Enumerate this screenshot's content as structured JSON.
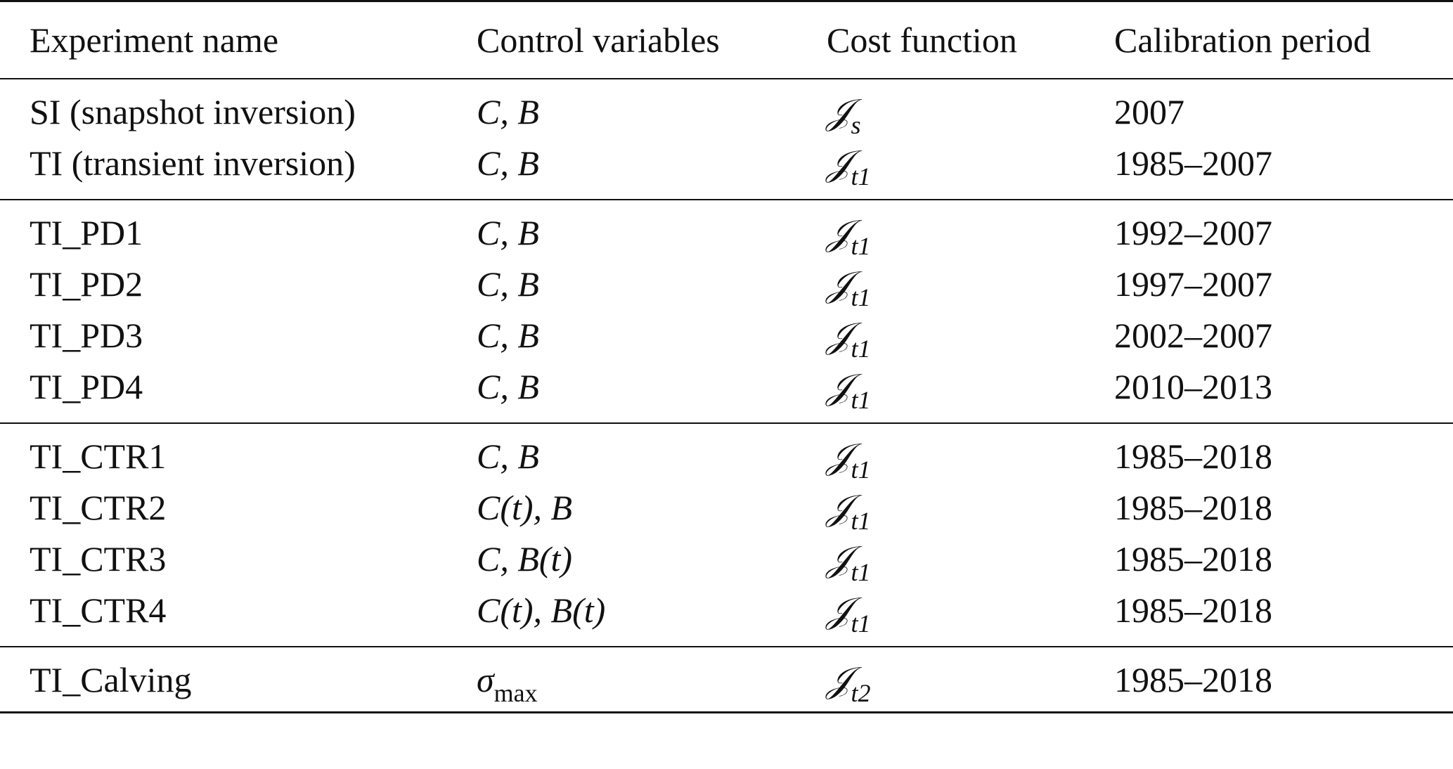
{
  "table": {
    "headers": [
      "Experiment name",
      "Control variables",
      "Cost function",
      "Calibration period"
    ],
    "groups": [
      [
        {
          "name": "SI (snapshot inversion)",
          "control": "C, B",
          "cost_main": "𝒥",
          "cost_sub": "s",
          "period": "2007"
        },
        {
          "name": "TI (transient inversion)",
          "control": "C, B",
          "cost_main": "𝒥",
          "cost_sub": "t1",
          "period": "1985–2007"
        }
      ],
      [
        {
          "name": "TI_PD1",
          "control": "C, B",
          "cost_main": "𝒥",
          "cost_sub": "t1",
          "period": "1992–2007"
        },
        {
          "name": "TI_PD2",
          "control": "C, B",
          "cost_main": "𝒥",
          "cost_sub": "t1",
          "period": "1997–2007"
        },
        {
          "name": "TI_PD3",
          "control": "C, B",
          "cost_main": "𝒥",
          "cost_sub": "t1",
          "period": "2002–2007"
        },
        {
          "name": "TI_PD4",
          "control": "C, B",
          "cost_main": "𝒥",
          "cost_sub": "t1",
          "period": "2010–2013"
        }
      ],
      [
        {
          "name": "TI_CTR1",
          "control": "C, B",
          "cost_main": "𝒥",
          "cost_sub": "t1",
          "period": "1985–2018"
        },
        {
          "name": "TI_CTR2",
          "control": "C(t), B",
          "cost_main": "𝒥",
          "cost_sub": "t1",
          "period": "1985–2018"
        },
        {
          "name": "TI_CTR3",
          "control": "C, B(t)",
          "cost_main": "𝒥",
          "cost_sub": "t1",
          "period": "1985–2018"
        },
        {
          "name": "TI_CTR4",
          "control": "C(t), B(t)",
          "cost_main": "𝒥",
          "cost_sub": "t1",
          "period": "1985–2018"
        }
      ],
      [
        {
          "name": "TI_Calving",
          "control": "σ",
          "control_sub": "max",
          "cost_main": "𝒥",
          "cost_sub": "t2",
          "period": "1985–2018"
        }
      ]
    ]
  }
}
